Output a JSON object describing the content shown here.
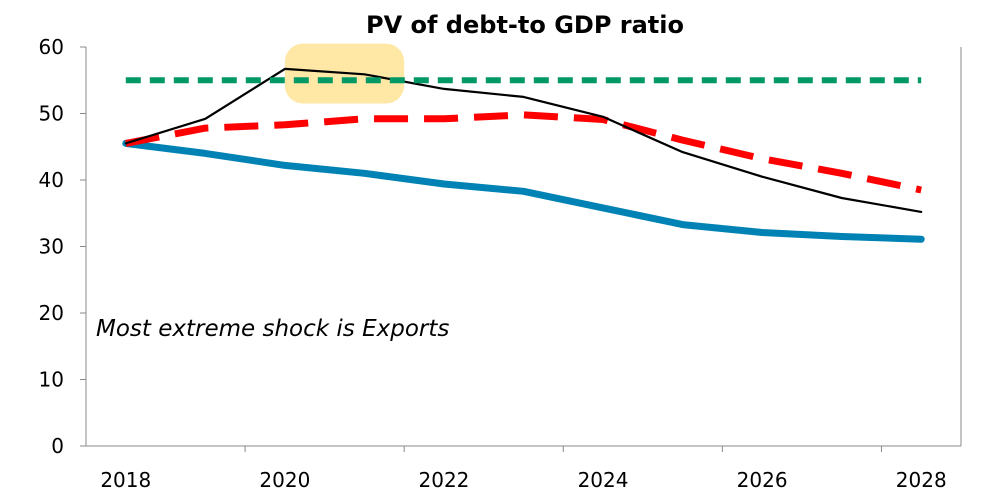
{
  "chart_data": {
    "type": "line",
    "title": "PV of debt-to GDP ratio",
    "xlabel": "",
    "ylabel": "",
    "x": [
      2018,
      2019,
      2020,
      2021,
      2022,
      2023,
      2024,
      2025,
      2026,
      2027,
      2028
    ],
    "xlim": [
      2017.5,
      2028.5
    ],
    "ylim": [
      0,
      60
    ],
    "x_ticks": [
      "2018",
      "2020",
      "2022",
      "2024",
      "2026",
      "2028"
    ],
    "x_tick_values": [
      2018,
      2020,
      2022,
      2024,
      2026,
      2028
    ],
    "y_ticks": [
      "0",
      "10",
      "20",
      "30",
      "40",
      "50",
      "60"
    ],
    "y_tick_values": [
      0,
      10,
      20,
      30,
      40,
      50,
      60
    ],
    "grid": false,
    "legend": "none",
    "annotation": "Most extreme shock is Exports",
    "series": [
      {
        "color": "#0082B4",
        "style": "solid-thick",
        "values": [
          45.5,
          44.0,
          42.2,
          41.0,
          39.4,
          38.3,
          35.8,
          33.3,
          32.1,
          31.5,
          31.1
        ]
      },
      {
        "color": "#FF0000",
        "style": "dashed-long",
        "values": [
          45.5,
          47.8,
          48.3,
          49.2,
          49.2,
          49.8,
          49.1,
          46.0,
          43.2,
          41.0,
          38.5
        ]
      },
      {
        "color": "#000000",
        "style": "solid-thin",
        "values": [
          45.5,
          49.2,
          56.7,
          55.9,
          53.7,
          52.5,
          49.5,
          44.2,
          40.5,
          37.3,
          35.2
        ]
      },
      {
        "color": "#009966",
        "style": "dashed-short",
        "values": [
          55,
          55,
          55,
          55,
          55,
          55,
          55,
          55,
          55,
          55,
          55
        ]
      }
    ],
    "highlight": {
      "x_range": [
        2020,
        2021.5
      ],
      "y_range": [
        51.5,
        60.5
      ],
      "color": "#FFE8A6"
    }
  }
}
